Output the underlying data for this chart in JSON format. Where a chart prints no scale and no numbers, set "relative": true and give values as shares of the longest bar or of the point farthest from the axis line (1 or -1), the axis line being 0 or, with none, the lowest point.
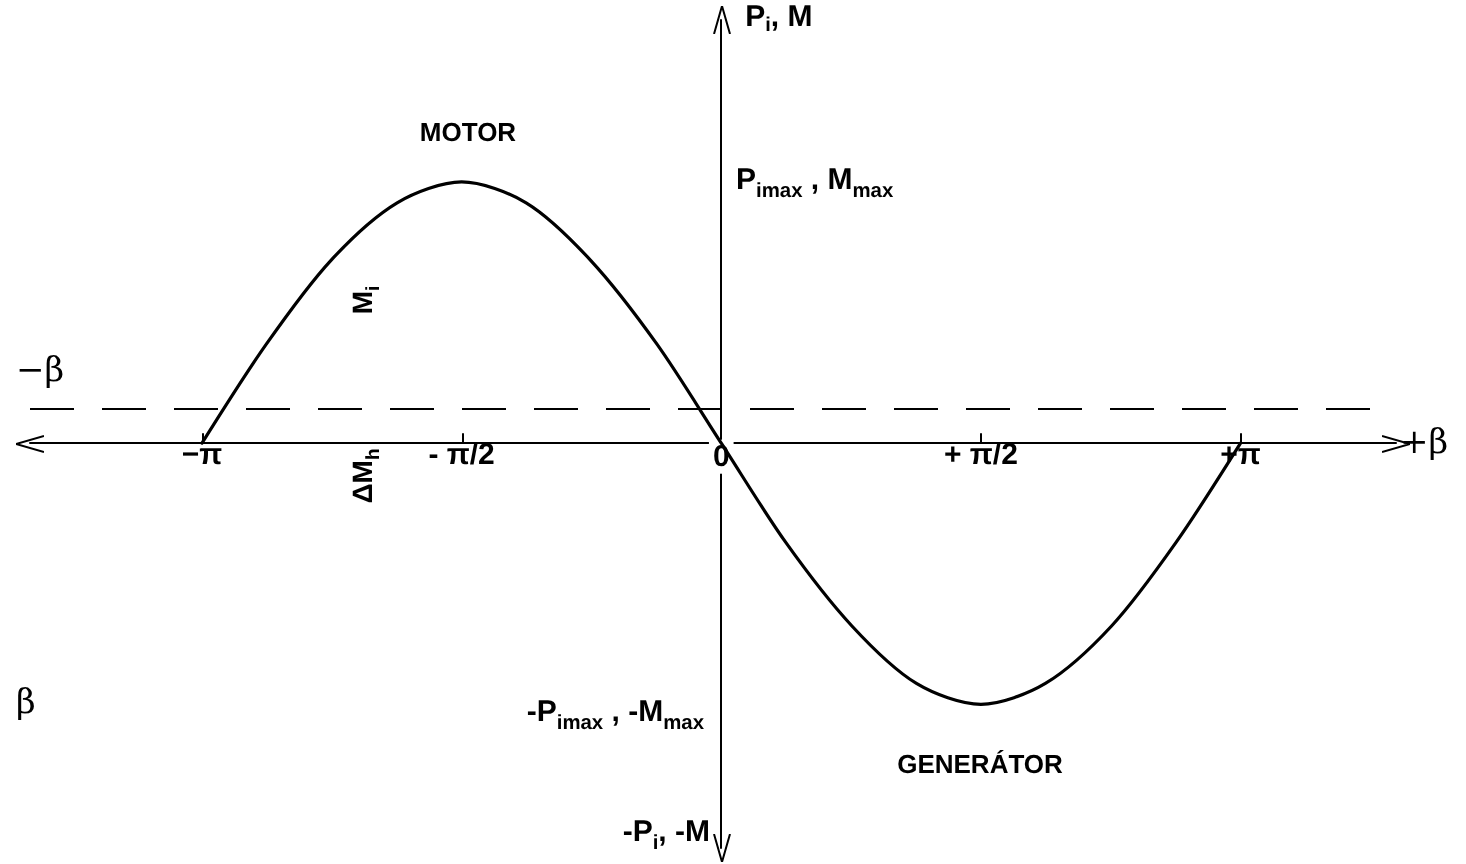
{
  "chart_data": {
    "type": "line",
    "ylabel": "P$_{i}$, M",
    "xlabel": "+β",
    "relative": true,
    "x": [
      -3.14,
      -2.75,
      -2.36,
      -1.96,
      -1.57,
      -1.18,
      -0.79,
      -0.39,
      0,
      0.39,
      0.79,
      1.18,
      1.57,
      1.96,
      2.36,
      2.75,
      3.14
    ],
    "series": [
      {
        "color": "#000000",
        "values": [
          0,
          0.38,
          0.7,
          0.92,
          1,
          0.92,
          0.7,
          0.38,
          0,
          -0.38,
          -0.7,
          -0.92,
          -1,
          -0.92,
          -0.7,
          -0.38,
          0
        ]
      }
    ],
    "xlim": [
      -4.18,
      4.08
    ],
    "xticks": [
      {
        "value": -3.14,
        "label": "−π"
      },
      {
        "value": -1.57,
        "label": "- π/2"
      },
      0,
      {
        "value": 1.57,
        "label": "+ π/2"
      },
      {
        "value": 3.14,
        "label": "+π"
      }
    ],
    "ref_lines": [
      {
        "axis": "y",
        "value": 0.13,
        "label": null,
        "line_style": "dashed",
        "color": "#000000"
      }
    ],
    "annotations": [
      "MOTOR",
      "GENERÁTOR",
      "M$_{i}$",
      "ΔM$_{h}$",
      "−β",
      "-P$_{i}$, -M",
      "β",
      "P$_{imax}$ , M$_{max}$",
      "-P$_{imax}$ , -M$_{max}$"
    ],
    "marker": "none",
    "line_style": "solid"
  }
}
